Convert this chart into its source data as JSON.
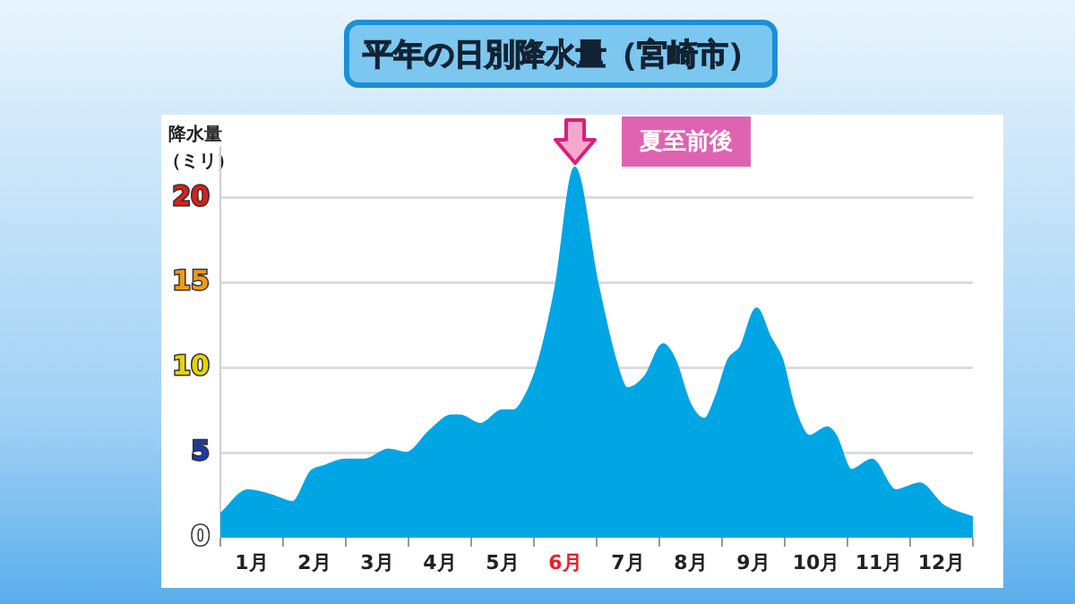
{
  "chart_data": {
    "type": "area",
    "title": "平年の日別降水量（宮崎市）",
    "ylabel": "降水量（ミリ）",
    "x": [
      0,
      0.44,
      0.82,
      1.15,
      1.44,
      1.63,
      2.0,
      2.3,
      2.68,
      2.96,
      3.34,
      3.68,
      3.82,
      4.15,
      4.49,
      4.68,
      4.87,
      5.06,
      5.34,
      5.65,
      6.01,
      6.3,
      6.49,
      6.77,
      7.06,
      7.25,
      7.49,
      7.72,
      7.91,
      8.1,
      8.29,
      8.55,
      8.77,
      8.96,
      9.15,
      9.39,
      9.68,
      9.82,
      10.06,
      10.39,
      10.77,
      11.15,
      11.53,
      12.0
    ],
    "series": [
      {
        "color": "#00a6e4",
        "values": [
          1.4,
          2.8,
          2.5,
          2.1,
          3.9,
          4.2,
          4.6,
          4.6,
          5.2,
          5.0,
          6.3,
          7.2,
          7.2,
          6.7,
          7.5,
          7.5,
          8.4,
          10.2,
          14.7,
          21.8,
          15.1,
          10.5,
          8.8,
          9.5,
          11.4,
          10.5,
          7.9,
          7.0,
          8.4,
          10.5,
          11.2,
          13.5,
          11.8,
          10.5,
          7.7,
          6.0,
          6.5,
          6.0,
          4.0,
          4.6,
          2.8,
          3.2,
          1.9,
          1.2
        ]
      }
    ],
    "xlim": [
      0,
      12
    ],
    "xticks": [
      {
        "value": 0,
        "label": null
      },
      {
        "value": 0.5,
        "label": "1月"
      },
      {
        "value": 1,
        "label": null
      },
      {
        "value": 1.5,
        "label": "2月"
      },
      {
        "value": 2,
        "label": null
      },
      {
        "value": 2.5,
        "label": "3月"
      },
      {
        "value": 3,
        "label": null
      },
      {
        "value": 3.5,
        "label": "4月"
      },
      {
        "value": 4,
        "label": null
      },
      {
        "value": 4.5,
        "label": "5月"
      },
      {
        "value": 5,
        "label": null
      },
      {
        "value": 5.5,
        "label": "6月"
      },
      {
        "value": 6,
        "label": null
      },
      {
        "value": 6.5,
        "label": "7月"
      },
      {
        "value": 7,
        "label": null
      },
      {
        "value": 7.5,
        "label": "8月"
      },
      {
        "value": 8,
        "label": null
      },
      {
        "value": 8.5,
        "label": "9月"
      },
      {
        "value": 9,
        "label": null
      },
      {
        "value": 9.5,
        "label": "10月"
      },
      {
        "value": 10,
        "label": null
      },
      {
        "value": 10.5,
        "label": "11月"
      },
      {
        "value": 11,
        "label": null
      },
      {
        "value": 11.5,
        "label": "12月"
      },
      {
        "value": 12,
        "label": null
      }
    ],
    "ylim": [
      0,
      23
    ],
    "yticks": [
      0,
      5,
      10,
      15,
      20
    ],
    "grid": "y",
    "legend": false,
    "annotations": [
      {
        "text": "夏至前後",
        "x": 5.65,
        "y": 21.8
      }
    ]
  }
}
